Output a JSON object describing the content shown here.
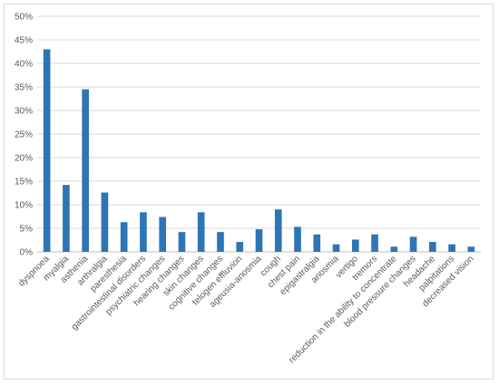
{
  "chart_data": {
    "type": "bar",
    "title": "",
    "xlabel": "",
    "ylabel": "",
    "ylim": [
      0,
      50
    ],
    "y_tick_step": 5,
    "y_tick_format": "percent",
    "grid": true,
    "bar_color": "#2e75b6",
    "categories": [
      "dyspnoea",
      "myalgia",
      "asthenia",
      "arthralgia",
      "paresthesia",
      "gastrointestinal disorders",
      "psychiatric changes",
      "hearing changes",
      "skin changes",
      "cognitive changes",
      "telogen effluvion",
      "ageusia-anosmia",
      "cough",
      "chest pain",
      "epigastralgia",
      "anosmia",
      "vertigo",
      "tremors",
      "reduction in the ability to concentrate",
      "blood pressure changes",
      "headache",
      "palpitations",
      "decreased vision"
    ],
    "values": [
      43,
      14.2,
      34.5,
      12.6,
      6.3,
      8.4,
      7.4,
      4.2,
      8.4,
      4.2,
      2.1,
      4.8,
      9,
      5.3,
      3.7,
      1.6,
      2.6,
      3.7,
      1.1,
      3.2,
      2.1,
      1.6,
      1.1
    ]
  }
}
